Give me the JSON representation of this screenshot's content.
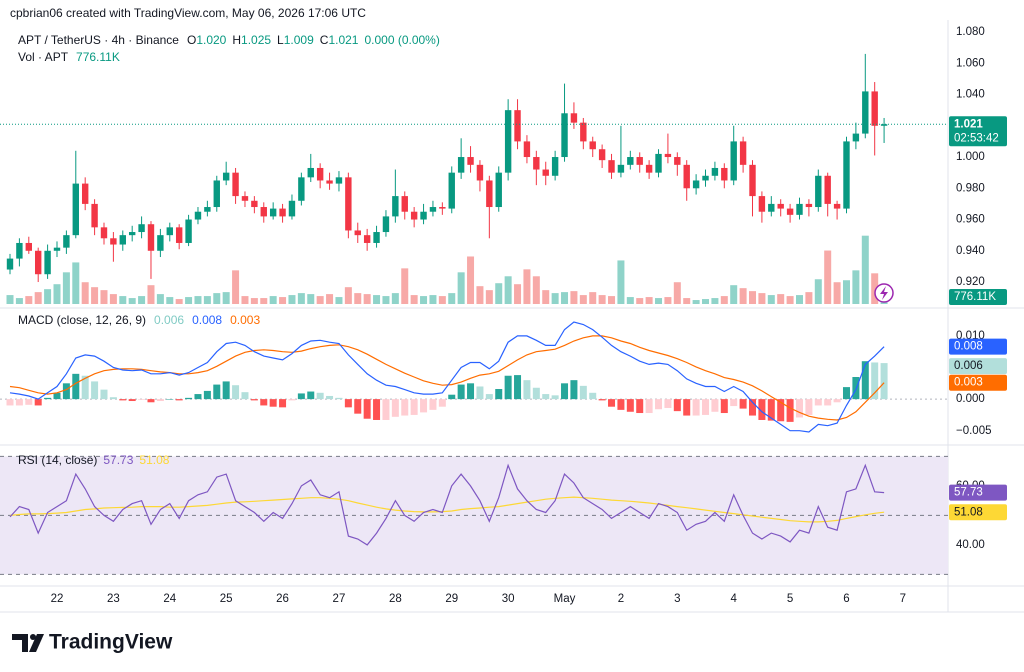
{
  "header": {
    "attribution": "cpbrian06 created with TradingView.com, May 06, 2026 17:06 UTC",
    "symbol": "APT / TetherUS · 4h · Binance",
    "ohlc": [
      {
        "label": "O",
        "value": "1.020"
      },
      {
        "label": "H",
        "value": "1.025"
      },
      {
        "label": "L",
        "value": "1.009"
      },
      {
        "label": "C",
        "value": "1.021"
      }
    ],
    "change": "0.000 (0.00%)"
  },
  "price_label": {
    "value": "1.021",
    "countdown": "02:53:42"
  },
  "footer": {
    "brand": "TradingView"
  },
  "chart_data": [
    {
      "type": "candlestick",
      "up_color": "#089981",
      "down_color": "#f23645",
      "xlim": [
        -1.064,
        99.8
      ],
      "xticks": [
        {
          "value": 5,
          "label": "22"
        },
        {
          "value": 11,
          "label": "23"
        },
        {
          "value": 17,
          "label": "24"
        },
        {
          "value": 23,
          "label": "25"
        },
        {
          "value": 29,
          "label": "26"
        },
        {
          "value": 35,
          "label": "27"
        },
        {
          "value": 41,
          "label": "28"
        },
        {
          "value": 47,
          "label": "29"
        },
        {
          "value": 53,
          "label": "30"
        },
        {
          "value": 59,
          "label": "May"
        },
        {
          "value": 65,
          "label": "2"
        },
        {
          "value": 71,
          "label": "3"
        },
        {
          "value": 77,
          "label": "4"
        },
        {
          "value": 83,
          "label": "5"
        },
        {
          "value": 89,
          "label": "6"
        },
        {
          "value": 95,
          "label": "7"
        }
      ],
      "ylim": [
        0.9053,
        1.0845
      ],
      "yticks": [
        {
          "value": 1.08,
          "label": "1.080"
        },
        {
          "value": 1.06,
          "label": "1.060"
        },
        {
          "value": 1.04,
          "label": "1.040"
        },
        {
          "value": 1.02,
          "label": "1.020"
        },
        {
          "value": 1.0,
          "label": "1.000"
        },
        {
          "value": 0.98,
          "label": "0.980"
        },
        {
          "value": 0.96,
          "label": "0.960"
        },
        {
          "value": 0.94,
          "label": "0.940"
        },
        {
          "value": 0.92,
          "label": "0.920"
        }
      ],
      "open": [
        0.928,
        0.935,
        0.945,
        0.94,
        0.925,
        0.94,
        0.942,
        0.95,
        0.983,
        0.97,
        0.955,
        0.948,
        0.944,
        0.95,
        0.952,
        0.957,
        0.94,
        0.95,
        0.955,
        0.945,
        0.96,
        0.965,
        0.968,
        0.985,
        0.99,
        0.975,
        0.972,
        0.968,
        0.962,
        0.967,
        0.962,
        0.972,
        0.987,
        0.993,
        0.985,
        0.983,
        0.987,
        0.953,
        0.95,
        0.945,
        0.952,
        0.962,
        0.975,
        0.965,
        0.96,
        0.965,
        0.968,
        0.967,
        0.99,
        1.0,
        0.995,
        0.985,
        0.968,
        0.99,
        1.03,
        1.01,
        1.0,
        0.992,
        0.988,
        1.0,
        1.028,
        1.022,
        1.01,
        1.005,
        0.998,
        0.99,
        0.995,
        1.0,
        0.995,
        0.99,
        1.002,
        1.0,
        0.995,
        0.98,
        0.985,
        0.988,
        0.993,
        0.985,
        1.01,
        0.995,
        0.975,
        0.965,
        0.97,
        0.967,
        0.963,
        0.97,
        0.968,
        0.988,
        0.97,
        0.967,
        1.01,
        1.015,
        1.042,
        1.02
      ],
      "high": [
        0.938,
        0.948,
        0.949,
        0.942,
        0.944,
        0.946,
        0.953,
        1.004,
        0.987,
        0.973,
        0.958,
        0.952,
        0.953,
        0.956,
        0.962,
        0.959,
        0.954,
        0.958,
        0.957,
        0.963,
        0.968,
        0.972,
        0.988,
        0.997,
        0.993,
        0.978,
        0.975,
        0.971,
        0.971,
        0.97,
        0.976,
        0.99,
        1.002,
        0.996,
        0.99,
        0.991,
        0.99,
        0.958,
        0.954,
        0.956,
        0.966,
        0.992,
        0.978,
        0.968,
        0.97,
        0.972,
        0.971,
        0.994,
        1.012,
        1.007,
        0.998,
        0.988,
        0.994,
        1.037,
        1.037,
        1.014,
        1.004,
        0.997,
        1.004,
        1.047,
        1.035,
        1.025,
        1.013,
        1.008,
        1.002,
        1.02,
        1.004,
        1.003,
        0.998,
        1.005,
        1.015,
        1.003,
        0.998,
        0.989,
        0.992,
        0.997,
        0.996,
        1.02,
        1.013,
        0.998,
        0.978,
        0.975,
        0.973,
        0.97,
        0.974,
        0.973,
        0.992,
        0.99,
        0.972,
        1.013,
        1.022,
        1.066,
        1.048,
        1.025
      ],
      "low": [
        0.925,
        0.93,
        0.938,
        0.92,
        0.922,
        0.936,
        0.938,
        0.948,
        0.966,
        0.95,
        0.944,
        0.933,
        0.94,
        0.946,
        0.948,
        0.922,
        0.936,
        0.946,
        0.941,
        0.943,
        0.957,
        0.962,
        0.965,
        0.982,
        0.97,
        0.968,
        0.964,
        0.958,
        0.96,
        0.958,
        0.96,
        0.969,
        0.984,
        0.98,
        0.979,
        0.978,
        0.948,
        0.945,
        0.94,
        0.942,
        0.949,
        0.958,
        0.96,
        0.955,
        0.957,
        0.962,
        0.963,
        0.964,
        0.986,
        0.99,
        0.978,
        0.948,
        0.965,
        0.985,
        1.005,
        0.996,
        0.982,
        0.982,
        0.985,
        0.997,
        1.018,
        1.005,
        1.0,
        0.993,
        0.986,
        0.987,
        0.992,
        0.99,
        0.986,
        0.987,
        0.996,
        0.988,
        0.972,
        0.976,
        0.981,
        0.985,
        0.98,
        0.982,
        0.99,
        0.962,
        0.958,
        0.962,
        0.962,
        0.958,
        0.96,
        0.962,
        0.965,
        0.962,
        0.96,
        0.964,
        1.005,
        1.012,
        1.001,
        1.009
      ],
      "close": [
        0.935,
        0.945,
        0.94,
        0.925,
        0.94,
        0.942,
        0.95,
        0.983,
        0.97,
        0.955,
        0.948,
        0.944,
        0.95,
        0.952,
        0.957,
        0.94,
        0.95,
        0.955,
        0.945,
        0.96,
        0.965,
        0.968,
        0.985,
        0.99,
        0.975,
        0.972,
        0.968,
        0.962,
        0.967,
        0.962,
        0.972,
        0.987,
        0.993,
        0.985,
        0.983,
        0.987,
        0.953,
        0.95,
        0.945,
        0.952,
        0.962,
        0.975,
        0.965,
        0.96,
        0.965,
        0.968,
        0.967,
        0.99,
        1.0,
        0.995,
        0.985,
        0.968,
        0.99,
        1.03,
        1.01,
        1.0,
        0.992,
        0.988,
        1.0,
        1.028,
        1.022,
        1.01,
        1.005,
        0.998,
        0.99,
        0.995,
        1.0,
        0.995,
        0.99,
        1.002,
        1.0,
        0.995,
        0.98,
        0.985,
        0.988,
        0.993,
        0.985,
        1.01,
        0.995,
        0.975,
        0.965,
        0.97,
        0.967,
        0.963,
        0.97,
        0.968,
        0.988,
        0.97,
        0.967,
        1.01,
        1.015,
        1.042,
        1.02,
        1.021
      ]
    },
    {
      "type": "bar",
      "title": "Vol · APT",
      "last_label": "776.11K",
      "up_color": "#8fd3c9",
      "down_color": "#f7a9a7",
      "label_color": "#089981",
      "ylim": [
        0,
        11000000
      ],
      "values": [
        990000,
        660000,
        880000,
        1320000,
        1650000,
        2200000,
        3520000,
        4620000,
        2420000,
        1870000,
        1540000,
        1100000,
        880000,
        660000,
        880000,
        2090000,
        1100000,
        770000,
        550000,
        770000,
        880000,
        880000,
        1210000,
        1320000,
        3740000,
        880000,
        660000,
        660000,
        880000,
        770000,
        990000,
        1210000,
        1100000,
        880000,
        1100000,
        770000,
        1870000,
        1210000,
        1100000,
        990000,
        880000,
        1210000,
        3960000,
        990000,
        880000,
        990000,
        880000,
        1210000,
        3520000,
        5280000,
        1980000,
        1540000,
        2310000,
        3080000,
        2200000,
        3850000,
        3080000,
        1540000,
        1210000,
        1320000,
        1430000,
        990000,
        1320000,
        990000,
        880000,
        4840000,
        770000,
        660000,
        770000,
        660000,
        770000,
        2420000,
        660000,
        440000,
        550000,
        660000,
        880000,
        2090000,
        1760000,
        1430000,
        1210000,
        990000,
        1100000,
        880000,
        990000,
        1320000,
        2750000,
        5940000,
        2420000,
        2640000,
        3740000,
        7590000,
        3410000,
        776110
      ]
    },
    {
      "type": "macd",
      "title": "MACD (close, 12, 26, 9)",
      "zero_line": true,
      "ylim": [
        -0.0071,
        0.0141
      ],
      "yticks": [
        {
          "value": 0.01,
          "label": "0.010"
        },
        {
          "value": 0,
          "label": "0.000"
        },
        {
          "value": -0.005,
          "label": "−0.005"
        }
      ],
      "histogram": {
        "last_label": "0.006",
        "color": "#b2dfdb",
        "label_text": "#131722",
        "colors": {
          "grow_above": "#26a69a",
          "fall_above": "#b2dfdb",
          "grow_below": "#ffcdd2",
          "fall_below": "#ff5252"
        },
        "values": [
          -0.001,
          -0.001,
          -0.0009,
          -0.001,
          0.0002,
          0.001,
          0.0025,
          0.004,
          0.0037,
          0.0028,
          0.0015,
          0.0003,
          -0.0002,
          -0.0003,
          -0.0001,
          -0.0005,
          -0.0003,
          0,
          -0.0002,
          0.0002,
          0.0008,
          0.0013,
          0.0023,
          0.0028,
          0.0022,
          0.0011,
          -0.0002,
          -0.001,
          -0.0012,
          -0.0013,
          -0.0002,
          0.0009,
          0.0012,
          0.001,
          0.0005,
          0.0002,
          -0.0013,
          -0.0023,
          -0.0031,
          -0.0033,
          -0.0033,
          -0.0028,
          -0.0026,
          -0.0025,
          -0.0021,
          -0.0017,
          -0.0012,
          0.0007,
          0.0023,
          0.0025,
          0.002,
          0.0008,
          0.0016,
          0.0037,
          0.0038,
          0.003,
          0.0018,
          0.0008,
          0.0006,
          0.0025,
          0.003,
          0.0021,
          0.001,
          -0.0002,
          -0.0012,
          -0.0017,
          -0.002,
          -0.0022,
          -0.0022,
          -0.0016,
          -0.0014,
          -0.0019,
          -0.0026,
          -0.0026,
          -0.0025,
          -0.002,
          -0.0022,
          -0.0011,
          -0.0015,
          -0.0026,
          -0.0033,
          -0.0034,
          -0.0035,
          -0.0036,
          -0.0029,
          -0.0025,
          -0.001,
          -0.001,
          -0.0005,
          0.0019,
          0.0035,
          0.006,
          0.0058,
          0.0057
        ]
      },
      "macd": {
        "color": "#2962ff",
        "last_label": "0.008",
        "values": [
          0.001,
          0.0008,
          0.0005,
          0,
          0.001,
          0.002,
          0.004,
          0.0065,
          0.007,
          0.0068,
          0.006,
          0.005,
          0.0046,
          0.0045,
          0.0046,
          0.004,
          0.004,
          0.0042,
          0.0038,
          0.0042,
          0.005,
          0.0058,
          0.0075,
          0.0088,
          0.009,
          0.0085,
          0.0075,
          0.0068,
          0.0065,
          0.0062,
          0.0072,
          0.0085,
          0.0092,
          0.0093,
          0.009,
          0.0088,
          0.007,
          0.0055,
          0.004,
          0.003,
          0.0022,
          0.002,
          0.0015,
          0.001,
          0.0008,
          0.0008,
          0.001,
          0.003,
          0.005,
          0.0058,
          0.0058,
          0.0048,
          0.006,
          0.009,
          0.01,
          0.01,
          0.0093,
          0.0085,
          0.0085,
          0.011,
          0.0122,
          0.0118,
          0.011,
          0.0098,
          0.0085,
          0.0075,
          0.0068,
          0.006,
          0.0055,
          0.0057,
          0.0055,
          0.0045,
          0.0032,
          0.0025,
          0.002,
          0.002,
          0.0012,
          0.002,
          0.0012,
          -0.0005,
          -0.002,
          -0.003,
          -0.004,
          -0.005,
          -0.005,
          -0.0052,
          -0.004,
          -0.0042,
          -0.0038,
          -0.001,
          0.0015,
          0.0055,
          0.0068,
          0.0083
        ]
      },
      "signal": {
        "color": "#ff6d00",
        "last_label": "0.003",
        "values": [
          0.002,
          0.0018,
          0.0014,
          0.001,
          0.0008,
          0.001,
          0.0015,
          0.0025,
          0.0033,
          0.004,
          0.0045,
          0.0047,
          0.0048,
          0.0048,
          0.0047,
          0.0045,
          0.0043,
          0.0042,
          0.004,
          0.004,
          0.0042,
          0.0045,
          0.0052,
          0.006,
          0.0068,
          0.0074,
          0.0077,
          0.0078,
          0.0077,
          0.0075,
          0.0074,
          0.0076,
          0.008,
          0.0083,
          0.0085,
          0.0086,
          0.0083,
          0.0078,
          0.0071,
          0.0063,
          0.0055,
          0.0048,
          0.0041,
          0.0035,
          0.0029,
          0.0025,
          0.0022,
          0.0023,
          0.0027,
          0.0033,
          0.0038,
          0.004,
          0.0044,
          0.0053,
          0.0062,
          0.007,
          0.0075,
          0.0077,
          0.0079,
          0.0085,
          0.0092,
          0.0097,
          0.01,
          0.01,
          0.0097,
          0.0092,
          0.0088,
          0.0082,
          0.0077,
          0.0073,
          0.0069,
          0.0064,
          0.0058,
          0.0051,
          0.0045,
          0.004,
          0.0034,
          0.0031,
          0.0027,
          0.0021,
          0.0013,
          0.0004,
          -0.0005,
          -0.0014,
          -0.0021,
          -0.0027,
          -0.003,
          -0.0032,
          -0.0033,
          -0.0029,
          -0.002,
          -0.0005,
          0.001,
          0.0026
        ]
      }
    },
    {
      "type": "rsi",
      "title": "RSI (14, close)",
      "band_color": "#ede7f6",
      "levels": [
        70,
        50,
        30
      ],
      "ylim": [
        26.4,
        73.2
      ],
      "yticks": [
        {
          "value": 60,
          "label": "60.00"
        },
        {
          "value": 40,
          "label": "40.00"
        }
      ],
      "rsi": {
        "color": "#7e57c2",
        "last_label": "57.73",
        "label_text": "#ffffff",
        "values": [
          49.5,
          53,
          52,
          44,
          51,
          53,
          55,
          64,
          59,
          53,
          50,
          48,
          52,
          54,
          55,
          47,
          52,
          54,
          49,
          55,
          57,
          58,
          63,
          64,
          55,
          53,
          51,
          48,
          51,
          49,
          54,
          60,
          62,
          57,
          56,
          58,
          43,
          42,
          40,
          44,
          49,
          55,
          50,
          48,
          51,
          52,
          51,
          60,
          64,
          60,
          55,
          48,
          56,
          67,
          59,
          55,
          52,
          51,
          55,
          64,
          61,
          56,
          54,
          52,
          49,
          51,
          53,
          51,
          49,
          54,
          53,
          51,
          45,
          47,
          48,
          51,
          48,
          57,
          50,
          44,
          42,
          44,
          43,
          41,
          45,
          44,
          53,
          46,
          45,
          58,
          59,
          67,
          58,
          57.73
        ]
      },
      "ma": {
        "color": "#fdd835",
        "last_label": "51.08",
        "label_text": "#131722",
        "values": [
          50,
          50.3,
          50.5,
          50.5,
          50.6,
          50.8,
          51,
          51.5,
          52,
          52.2,
          52.5,
          52.6,
          52.7,
          52.8,
          53,
          53,
          53,
          52.8,
          52.8,
          53,
          53.2,
          53.4,
          53.8,
          54.2,
          54.5,
          54.6,
          54.8,
          55,
          55.2,
          55.4,
          55.6,
          55.8,
          56,
          56,
          55.8,
          55.5,
          55,
          54.2,
          53.5,
          52.8,
          52.2,
          51.8,
          51.5,
          51.3,
          51.2,
          51.2,
          51.3,
          51.5,
          52,
          52.3,
          52.5,
          52.8,
          53,
          53.5,
          54,
          54.5,
          55,
          55.5,
          55.8,
          56,
          56.2,
          56,
          55.8,
          55.5,
          55.2,
          55,
          54.8,
          54.5,
          54.2,
          53.8,
          53.4,
          53,
          52.6,
          52.2,
          51.8,
          51.4,
          51,
          50.6,
          50.2,
          49.8,
          49.4,
          49,
          48.6,
          48.2,
          48,
          47.8,
          47.8,
          48,
          48.3,
          49,
          49.6,
          50.2,
          50.7,
          51.08
        ]
      }
    }
  ]
}
